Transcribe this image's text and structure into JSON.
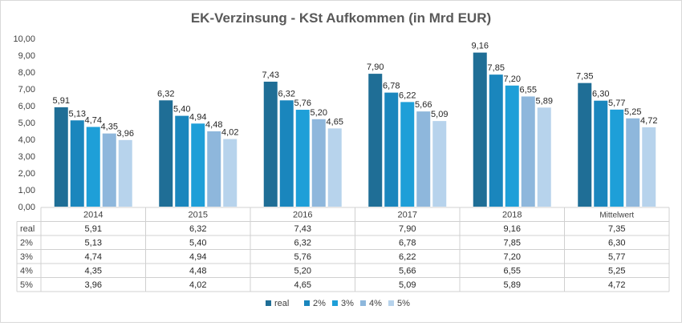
{
  "chart_data": {
    "type": "bar",
    "title": "EK-Verzinsung - KSt Aufkommen (in Mrd EUR)",
    "categories": [
      "2014",
      "2015",
      "2016",
      "2017",
      "2018",
      "Mittelwert"
    ],
    "series": [
      {
        "name": "real",
        "values": [
          5.91,
          6.32,
          7.43,
          7.9,
          9.16,
          7.35
        ],
        "labels": [
          "5,91",
          "6,32",
          "7,43",
          "7,90",
          "9,16",
          "7,35"
        ],
        "color": "#1f6e96"
      },
      {
        "name": "2%",
        "values": [
          5.13,
          5.4,
          6.32,
          6.78,
          7.85,
          6.3
        ],
        "labels": [
          "5,13",
          "5,40",
          "6,32",
          "6,78",
          "7,85",
          "6,30"
        ],
        "color": "#1a86bd"
      },
      {
        "name": "3%",
        "values": [
          4.74,
          4.94,
          5.76,
          6.22,
          7.2,
          5.77
        ],
        "labels": [
          "4,74",
          "4,94",
          "5,76",
          "6,22",
          "7,20",
          "5,77"
        ],
        "color": "#1e9fd8"
      },
      {
        "name": "4%",
        "values": [
          4.35,
          4.48,
          5.2,
          5.66,
          6.55,
          5.25
        ],
        "labels": [
          "4,35",
          "4,48",
          "5,20",
          "5,66",
          "6,55",
          "5,25"
        ],
        "color": "#8eb7dc"
      },
      {
        "name": "5%",
        "values": [
          3.96,
          4.02,
          4.65,
          5.09,
          5.89,
          4.72
        ],
        "labels": [
          "3,96",
          "4,02",
          "4,65",
          "5,09",
          "5,89",
          "4,72"
        ],
        "color": "#b7d3ec"
      }
    ],
    "y_ticks": [
      "0,00",
      "1,00",
      "2,00",
      "3,00",
      "4,00",
      "5,00",
      "6,00",
      "7,00",
      "8,00",
      "9,00",
      "10,00"
    ],
    "ylim": [
      0,
      10
    ],
    "grid": false,
    "legend": "bottom-center",
    "data_table": true
  }
}
